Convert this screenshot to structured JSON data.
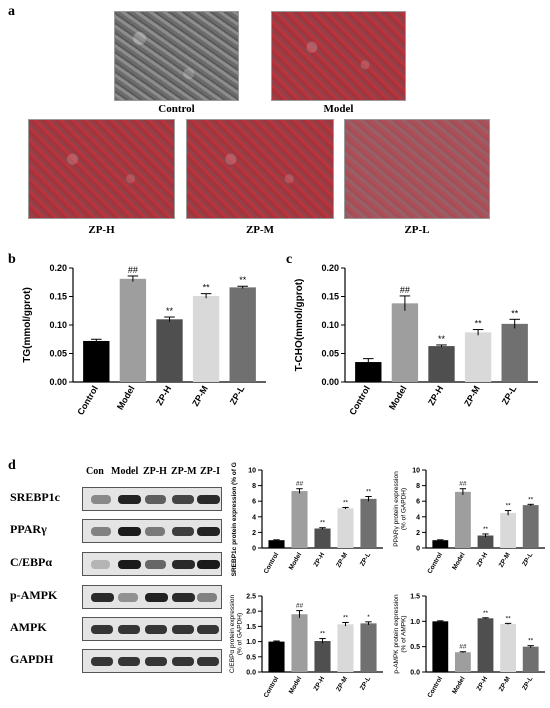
{
  "panels": {
    "a": "a",
    "b": "b",
    "c": "c",
    "d": "d"
  },
  "micrographs": {
    "labels": [
      "Control",
      "Model",
      "ZP-H",
      "ZP-M",
      "ZP-L"
    ]
  },
  "western_blot": {
    "lanes": [
      "Con",
      "Model",
      "ZP-H",
      "ZP-M",
      "ZP-I"
    ],
    "proteins": [
      "SREBP1c",
      "PPARγ",
      "C/EBPα",
      "p-AMPK",
      "AMPK",
      "GAPDH"
    ],
    "band_intensity": [
      [
        0.35,
        0.95,
        0.6,
        0.75,
        0.9
      ],
      [
        0.4,
        1.0,
        0.45,
        0.8,
        0.95
      ],
      [
        0.1,
        1.0,
        0.55,
        0.9,
        1.0
      ],
      [
        0.9,
        0.3,
        0.95,
        0.9,
        0.4
      ],
      [
        0.85,
        0.85,
        0.85,
        0.85,
        0.85
      ],
      [
        0.85,
        0.85,
        0.85,
        0.85,
        0.85
      ]
    ]
  },
  "colors": [
    "#000000",
    "#9e9e9e",
    "#4f4f4f",
    "#d9d9d9",
    "#707070"
  ],
  "chart_data": [
    {
      "id": "tg",
      "type": "bar",
      "categories": [
        "Control",
        "Model",
        "ZP-H",
        "ZP-M",
        "ZP-L"
      ],
      "values": [
        0.072,
        0.181,
        0.11,
        0.151,
        0.166
      ],
      "errors": [
        0.003,
        0.005,
        0.004,
        0.004,
        0.002
      ],
      "annotations": [
        "",
        "##",
        "**",
        "**",
        "**"
      ],
      "ylabel": "TG(mmol/gprot)",
      "ylim": [
        0,
        0.2
      ],
      "yticks": [
        "0.00",
        "0.05",
        "0.10",
        "0.15",
        "0.20"
      ],
      "ytick_values": [
        0,
        0.05,
        0.1,
        0.15,
        0.2
      ]
    },
    {
      "id": "tcho",
      "type": "bar",
      "categories": [
        "Control",
        "Model",
        "ZP-H",
        "ZP-M",
        "ZP-L"
      ],
      "values": [
        0.035,
        0.138,
        0.063,
        0.087,
        0.102
      ],
      "errors": [
        0.006,
        0.013,
        0.002,
        0.005,
        0.008
      ],
      "annotations": [
        "",
        "##",
        "**",
        "**",
        "**"
      ],
      "ylabel": "T-CHO(mmol/gprot)",
      "ylim": [
        0,
        0.2
      ],
      "yticks": [
        "0.00",
        "0.05",
        "0.10",
        "0.15",
        "0.20"
      ],
      "ytick_values": [
        0,
        0.05,
        0.1,
        0.15,
        0.2
      ]
    },
    {
      "id": "srebp",
      "type": "bar",
      "categories": [
        "Control",
        "Model",
        "ZP-H",
        "ZP-M",
        "ZP-L"
      ],
      "values": [
        1.0,
        7.3,
        2.5,
        5.1,
        6.3
      ],
      "errors": [
        0.05,
        0.3,
        0.1,
        0.1,
        0.3
      ],
      "annotations": [
        "",
        "##",
        "**",
        "**",
        "**"
      ],
      "ylabel": "SREBP1c protein expression (% of GAPDH)",
      "ylim": [
        0,
        10
      ],
      "yticks": [
        "0",
        "2",
        "4",
        "6",
        "8",
        "10"
      ],
      "ytick_values": [
        0,
        2,
        4,
        6,
        8,
        10
      ]
    },
    {
      "id": "pparg",
      "type": "bar",
      "categories": [
        "Control",
        "Model",
        "ZP-H",
        "ZP-M",
        "ZP-L"
      ],
      "values": [
        1.0,
        7.2,
        1.6,
        4.5,
        5.5
      ],
      "errors": [
        0.05,
        0.4,
        0.2,
        0.3,
        0.1
      ],
      "annotations": [
        "",
        "##",
        "**",
        "**",
        "**"
      ],
      "ylabel": "PPARγ protein expression (% of GAPDH)",
      "ylim": [
        0,
        10
      ],
      "yticks": [
        "0",
        "2",
        "4",
        "6",
        "8",
        "10"
      ],
      "ytick_values": [
        0,
        2,
        4,
        6,
        8,
        10
      ]
    },
    {
      "id": "cebpa",
      "type": "bar",
      "categories": [
        "Control",
        "Model",
        "ZP-H",
        "ZP-M",
        "ZP-L"
      ],
      "values": [
        1.0,
        1.9,
        1.02,
        1.57,
        1.6
      ],
      "errors": [
        0.02,
        0.12,
        0.08,
        0.06,
        0.05
      ],
      "annotations": [
        "",
        "##",
        "**",
        "**",
        "*"
      ],
      "ylabel": "C/EBPα protein expression (% of GAPDH)",
      "ylim": [
        0,
        2.5
      ],
      "yticks": [
        "0.0",
        "0.5",
        "1.0",
        "1.5",
        "2.0",
        "2.5"
      ],
      "ytick_values": [
        0,
        0.5,
        1.0,
        1.5,
        2.0,
        2.5
      ]
    },
    {
      "id": "pampk",
      "type": "bar",
      "categories": [
        "Control",
        "Model",
        "ZP-H",
        "ZP-M",
        "ZP-L"
      ],
      "values": [
        1.0,
        0.39,
        1.06,
        0.95,
        0.5
      ],
      "errors": [
        0.01,
        0.01,
        0.01,
        0.01,
        0.02
      ],
      "annotations": [
        "",
        "##",
        "**",
        "**",
        "**"
      ],
      "ylabel": "p-AMPK protein expression (% of AMPK)",
      "ylim": [
        0,
        1.5
      ],
      "yticks": [
        "0.0",
        "0.5",
        "1.0",
        "1.5"
      ],
      "ytick_values": [
        0,
        0.5,
        1.0,
        1.5
      ]
    }
  ]
}
